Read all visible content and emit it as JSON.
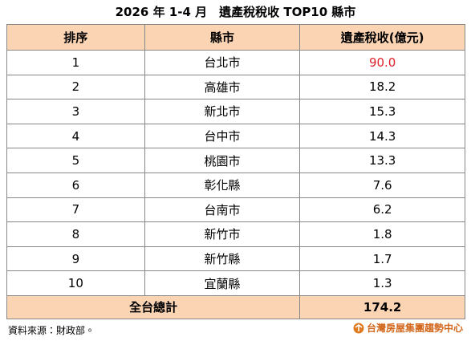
{
  "header": {
    "title": "2026 年 1-4 月　遺產稅稅收 TOP10 縣市"
  },
  "table": {
    "columns": [
      "排序",
      "縣市",
      "遺產稅收(億元)"
    ],
    "rows": [
      [
        "1",
        "台北市",
        "90.0"
      ],
      [
        "2",
        "高雄市",
        "18.2"
      ],
      [
        "3",
        "新北市",
        "15.3"
      ],
      [
        "4",
        "台中市",
        "14.3"
      ],
      [
        "5",
        "桃園市",
        "13.3"
      ],
      [
        "6",
        "彰化縣",
        "7.6"
      ],
      [
        "7",
        "台南市",
        "6.2"
      ],
      [
        "8",
        "新竹市",
        "1.8"
      ],
      [
        "9",
        "新竹縣",
        "1.7"
      ],
      [
        "10",
        "宜蘭縣",
        "1.3"
      ]
    ],
    "total": {
      "label": "全台總計",
      "value": "174.2"
    }
  },
  "footer": {
    "source": "資料來源：財政部。",
    "logo": "台灣房屋集團趨勢中心"
  }
}
